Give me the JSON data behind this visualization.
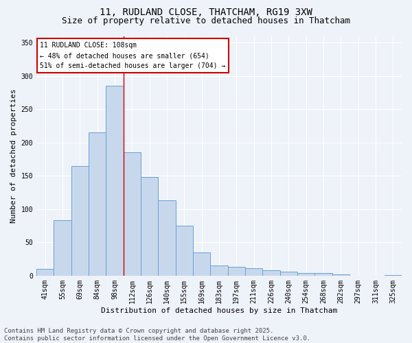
{
  "title_line1": "11, RUDLAND CLOSE, THATCHAM, RG19 3XW",
  "title_line2": "Size of property relative to detached houses in Thatcham",
  "xlabel": "Distribution of detached houses by size in Thatcham",
  "ylabel": "Number of detached properties",
  "categories": [
    "41sqm",
    "55sqm",
    "69sqm",
    "84sqm",
    "98sqm",
    "112sqm",
    "126sqm",
    "140sqm",
    "155sqm",
    "169sqm",
    "183sqm",
    "197sqm",
    "211sqm",
    "226sqm",
    "240sqm",
    "254sqm",
    "268sqm",
    "282sqm",
    "297sqm",
    "311sqm",
    "325sqm"
  ],
  "values": [
    10,
    83,
    165,
    215,
    285,
    185,
    148,
    113,
    75,
    35,
    15,
    13,
    11,
    8,
    6,
    4,
    4,
    2,
    0,
    0,
    1
  ],
  "bar_color": "#c8d8ec",
  "bar_edge_color": "#6a9fd8",
  "annotation_title": "11 RUDLAND CLOSE: 108sqm",
  "annotation_line2": "← 48% of detached houses are smaller (654)",
  "annotation_line3": "51% of semi-detached houses are larger (704) →",
  "annotation_box_facecolor": "#ffffff",
  "annotation_box_edgecolor": "#cc0000",
  "vline_x": 4.5,
  "ylim": [
    0,
    360
  ],
  "yticks": [
    0,
    50,
    100,
    150,
    200,
    250,
    300,
    350
  ],
  "footer_line1": "Contains HM Land Registry data © Crown copyright and database right 2025.",
  "footer_line2": "Contains public sector information licensed under the Open Government Licence v3.0.",
  "bg_color": "#eef2f9",
  "grid_color": "#ffffff",
  "title_fontsize": 10,
  "subtitle_fontsize": 9,
  "tick_fontsize": 7,
  "label_fontsize": 8,
  "annotation_fontsize": 7,
  "footer_fontsize": 6.5
}
